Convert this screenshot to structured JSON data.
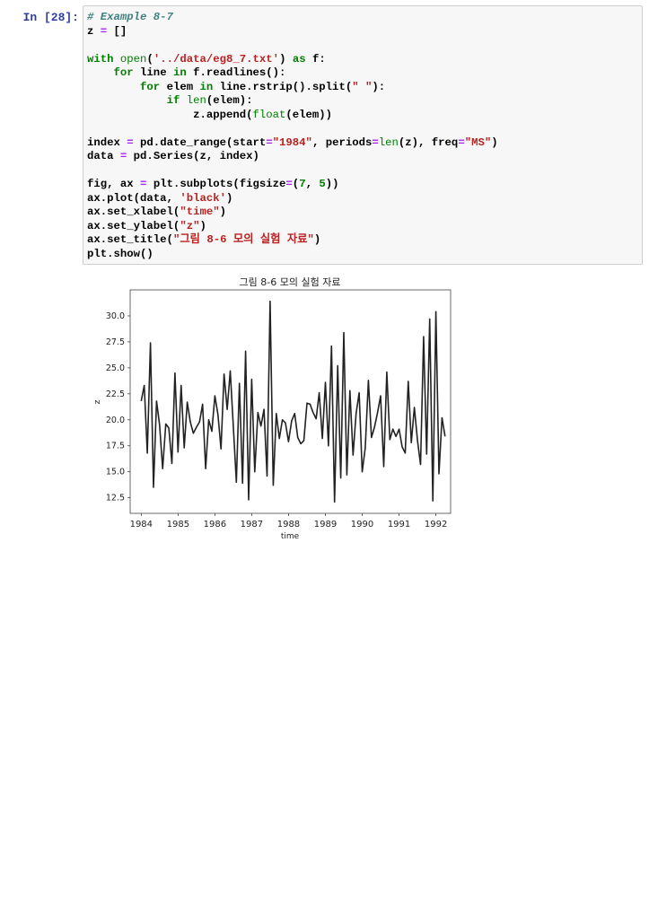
{
  "cell": {
    "prompt": "In [28]:",
    "code_lines": [
      [
        {
          "t": "cm",
          "v": "# Example 8-7"
        }
      ],
      [
        {
          "t": "",
          "v": "z "
        },
        {
          "t": "op",
          "v": "="
        },
        {
          "t": "",
          "v": " []"
        }
      ],
      [
        {
          "t": "",
          "v": ""
        }
      ],
      [
        {
          "t": "kw",
          "v": "with"
        },
        {
          "t": "",
          "v": " "
        },
        {
          "t": "bi",
          "v": "open"
        },
        {
          "t": "",
          "v": "("
        },
        {
          "t": "st",
          "v": "'../data/eg8_7.txt'"
        },
        {
          "t": "",
          "v": ") "
        },
        {
          "t": "kw",
          "v": "as"
        },
        {
          "t": "",
          "v": " f:"
        }
      ],
      [
        {
          "t": "",
          "v": "    "
        },
        {
          "t": "kw",
          "v": "for"
        },
        {
          "t": "",
          "v": " line "
        },
        {
          "t": "kw",
          "v": "in"
        },
        {
          "t": "",
          "v": " f.readlines():"
        }
      ],
      [
        {
          "t": "",
          "v": "        "
        },
        {
          "t": "kw",
          "v": "for"
        },
        {
          "t": "",
          "v": " elem "
        },
        {
          "t": "kw",
          "v": "in"
        },
        {
          "t": "",
          "v": " line.rstrip().split("
        },
        {
          "t": "st",
          "v": "\" \""
        },
        {
          "t": "",
          "v": "):"
        }
      ],
      [
        {
          "t": "",
          "v": "            "
        },
        {
          "t": "kw",
          "v": "if"
        },
        {
          "t": "",
          "v": " "
        },
        {
          "t": "bi",
          "v": "len"
        },
        {
          "t": "",
          "v": "(elem):"
        }
      ],
      [
        {
          "t": "",
          "v": "                z.append("
        },
        {
          "t": "bi",
          "v": "float"
        },
        {
          "t": "",
          "v": "(elem))"
        }
      ],
      [
        {
          "t": "",
          "v": ""
        }
      ],
      [
        {
          "t": "",
          "v": "index "
        },
        {
          "t": "op",
          "v": "="
        },
        {
          "t": "",
          "v": " pd.date_range(start"
        },
        {
          "t": "op",
          "v": "="
        },
        {
          "t": "st",
          "v": "\"1984\""
        },
        {
          "t": "",
          "v": ", periods"
        },
        {
          "t": "op",
          "v": "="
        },
        {
          "t": "bi",
          "v": "len"
        },
        {
          "t": "",
          "v": "(z), freq"
        },
        {
          "t": "op",
          "v": "="
        },
        {
          "t": "st",
          "v": "\"MS\""
        },
        {
          "t": "",
          "v": ")"
        }
      ],
      [
        {
          "t": "",
          "v": "data "
        },
        {
          "t": "op",
          "v": "="
        },
        {
          "t": "",
          "v": " pd.Series(z, index)"
        }
      ],
      [
        {
          "t": "",
          "v": ""
        }
      ],
      [
        {
          "t": "",
          "v": "fig, ax "
        },
        {
          "t": "op",
          "v": "="
        },
        {
          "t": "",
          "v": " plt.subplots(figsize"
        },
        {
          "t": "op",
          "v": "="
        },
        {
          "t": "",
          "v": "("
        },
        {
          "t": "nm",
          "v": "7"
        },
        {
          "t": "",
          "v": ", "
        },
        {
          "t": "nm",
          "v": "5"
        },
        {
          "t": "",
          "v": "))"
        }
      ],
      [
        {
          "t": "",
          "v": "ax.plot(data, "
        },
        {
          "t": "st",
          "v": "'black'"
        },
        {
          "t": "",
          "v": ")"
        }
      ],
      [
        {
          "t": "",
          "v": "ax.set_xlabel("
        },
        {
          "t": "st",
          "v": "\"time\""
        },
        {
          "t": "",
          "v": ")"
        }
      ],
      [
        {
          "t": "",
          "v": "ax.set_ylabel("
        },
        {
          "t": "st",
          "v": "\"z\""
        },
        {
          "t": "",
          "v": ")"
        }
      ],
      [
        {
          "t": "",
          "v": "ax.set_title("
        },
        {
          "t": "st",
          "v": "\"그림 8-6 모의 실험 자료\""
        },
        {
          "t": "",
          "v": ")"
        }
      ],
      [
        {
          "t": "",
          "v": "plt.show()"
        }
      ]
    ]
  },
  "chart_data": {
    "type": "line",
    "title": "그림 8-6 모의 실험 자료",
    "xlabel": "time",
    "ylabel": "z",
    "x_ticks": [
      "1984",
      "1985",
      "1986",
      "1987",
      "1988",
      "1989",
      "1990",
      "1991",
      "1992"
    ],
    "y_ticks": [
      "12.5",
      "15.0",
      "17.5",
      "20.0",
      "22.5",
      "25.0",
      "27.5",
      "30.0"
    ],
    "xlim": [
      1983.7,
      1992.4
    ],
    "ylim": [
      11.0,
      32.5
    ],
    "line_color": "#222222",
    "start": "1984-01",
    "freq": "MS",
    "series": [
      {
        "values": [
          21.8,
          23.3,
          16.8,
          27.4,
          13.5,
          21.8,
          19.5,
          15.3,
          19.6,
          19.2,
          15.8,
          24.5,
          16.9,
          23.3,
          17.3,
          21.7,
          19.8,
          18.7,
          19.3,
          19.8,
          21.5,
          15.3,
          20.0,
          18.9,
          22.3,
          20.5,
          17.2,
          24.4,
          21.0,
          24.7,
          19.4,
          14.0,
          23.5,
          13.9,
          26.6,
          12.3,
          23.9,
          15.0,
          20.7,
          19.4,
          21.0,
          14.6,
          31.4,
          13.7,
          20.6,
          18.2,
          20.0,
          19.7,
          17.9,
          19.9,
          20.6,
          18.3,
          17.7,
          18.0,
          21.6,
          21.5,
          20.7,
          20.1,
          22.6,
          18.2,
          23.6,
          17.5,
          27.1,
          12.1,
          25.2,
          14.4,
          28.4,
          14.7,
          22.8,
          16.6,
          20.6,
          22.6,
          15.0,
          17.3,
          23.8,
          18.3,
          19.3,
          20.7,
          22.3,
          15.5,
          24.6,
          18.1,
          19.1,
          18.4,
          19.1,
          17.4,
          16.8,
          23.7,
          17.8,
          21.2,
          18.0,
          15.7,
          28.0,
          16.7,
          29.7,
          12.2,
          30.4,
          14.8,
          20.2,
          18.4
        ]
      }
    ]
  }
}
